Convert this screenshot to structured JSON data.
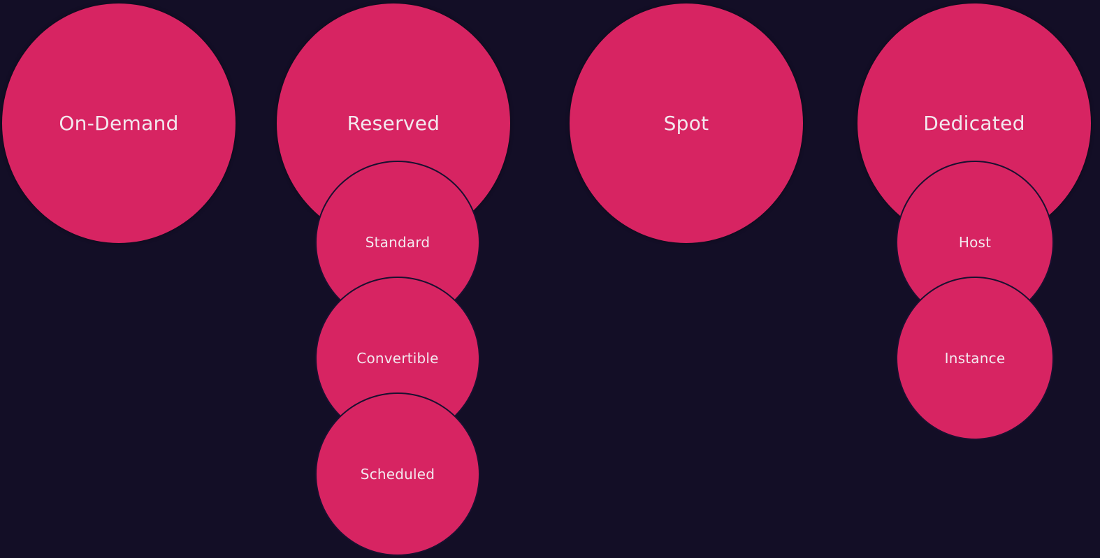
{
  "colors": {
    "background": "#130e26",
    "circle_fill": "#d72462",
    "label_text": "#f3e8ee"
  },
  "categories": [
    {
      "label": "On-Demand",
      "children": []
    },
    {
      "label": "Reserved",
      "children": [
        "Standard",
        "Convertible",
        "Scheduled"
      ]
    },
    {
      "label": "Spot",
      "children": []
    },
    {
      "label": "Dedicated",
      "children": [
        "Host",
        "Instance"
      ]
    }
  ]
}
